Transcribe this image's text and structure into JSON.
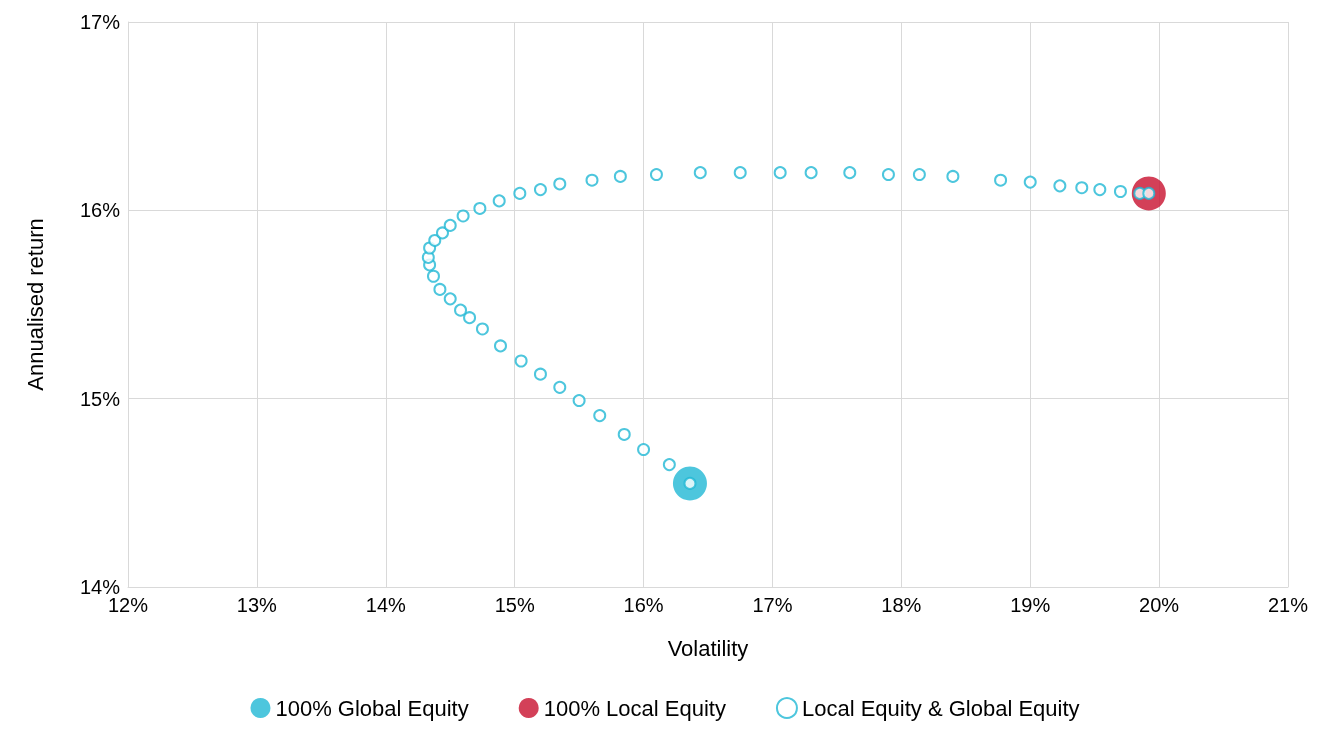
{
  "chart_data": {
    "type": "scatter",
    "xlabel": "Volatility",
    "ylabel": "Annualised return",
    "xlim": [
      12,
      21
    ],
    "xticks": [
      {
        "value": 12,
        "label": "12%"
      },
      {
        "value": 13,
        "label": "13%"
      },
      {
        "value": 14,
        "label": "14%"
      },
      {
        "value": 15,
        "label": "15%"
      },
      {
        "value": 16,
        "label": "16%"
      },
      {
        "value": 17,
        "label": "17%"
      },
      {
        "value": 18,
        "label": "18%"
      },
      {
        "value": 19,
        "label": "19%"
      },
      {
        "value": 20,
        "label": "20%"
      },
      {
        "value": 21,
        "label": "21%"
      }
    ],
    "ylim": [
      14,
      17
    ],
    "yticks": [
      {
        "value": 14,
        "label": "14%"
      },
      {
        "value": 15,
        "label": "15%"
      },
      {
        "value": 16,
        "label": "16%"
      },
      {
        "value": 17,
        "label": "17%"
      }
    ],
    "grid": true,
    "legend": "bottom",
    "marker": "circle",
    "series": [
      {
        "name": "100% Global Equity",
        "color": "#20b8d4",
        "x": [
          16.36
        ],
        "values": [
          14.55
        ]
      },
      {
        "name": "100% Local Equity",
        "color": "#c8102e",
        "x": [
          19.92
        ],
        "values": [
          16.09
        ]
      },
      {
        "name": "Local Equity & Global Equity",
        "color": "#20b8d4",
        "x": [
          16.36,
          16.2,
          16.0,
          15.85,
          15.66,
          15.5,
          15.35,
          15.2,
          15.05,
          14.89,
          14.75,
          14.65,
          14.58,
          14.5,
          14.42,
          14.37,
          14.34,
          14.33,
          14.34,
          14.38,
          14.44,
          14.5,
          14.6,
          14.73,
          14.88,
          15.04,
          15.2,
          15.35,
          15.6,
          15.82,
          16.1,
          16.44,
          16.75,
          17.06,
          17.3,
          17.6,
          17.9,
          18.14,
          18.4,
          18.77,
          19.0,
          19.23,
          19.4,
          19.54,
          19.7,
          19.85,
          19.92
        ],
        "values": [
          14.55,
          14.65,
          14.73,
          14.81,
          14.91,
          14.99,
          15.06,
          15.13,
          15.2,
          15.28,
          15.37,
          15.43,
          15.47,
          15.53,
          15.58,
          15.65,
          15.71,
          15.75,
          15.8,
          15.84,
          15.88,
          15.92,
          15.97,
          16.01,
          16.05,
          16.09,
          16.11,
          16.14,
          16.16,
          16.18,
          16.19,
          16.2,
          16.2,
          16.2,
          16.2,
          16.2,
          16.19,
          16.19,
          16.18,
          16.16,
          16.15,
          16.13,
          16.12,
          16.11,
          16.1,
          16.09,
          16.09
        ]
      }
    ]
  }
}
